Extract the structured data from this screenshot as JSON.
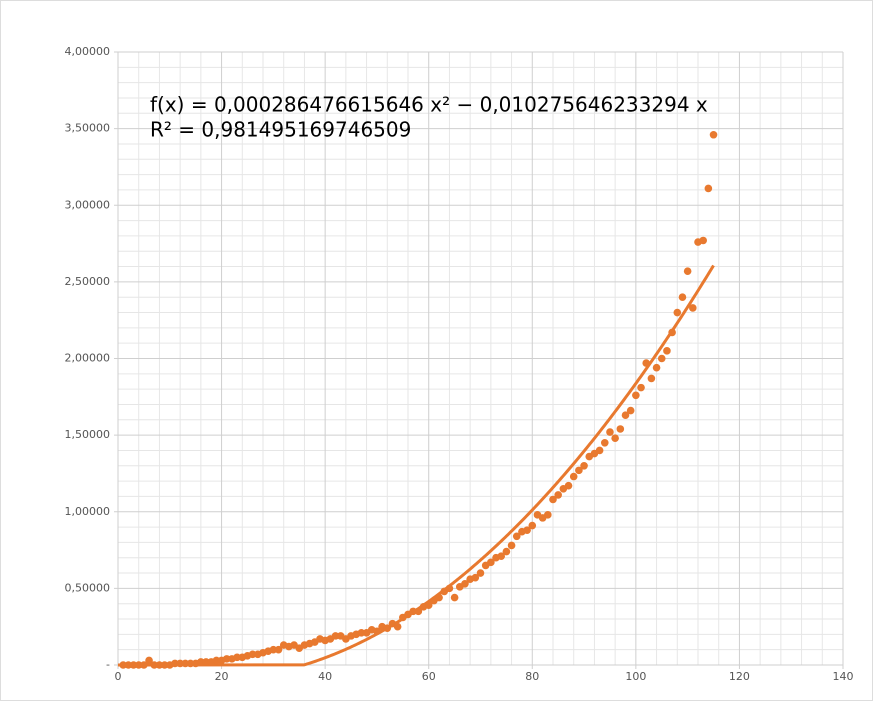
{
  "chart_data": {
    "type": "scatter",
    "annotations": [
      "f(x) = 0,000286476615646 x² − 0,010275646233294 x",
      "R² = 0,981495169746509"
    ],
    "trendline": {
      "type": "polynomial",
      "coefficients": [
        0.000286476615646,
        -0.010275646233294
      ],
      "color": "#e8792f"
    },
    "color": "#e8792f",
    "x": [
      1,
      2,
      3,
      4,
      5,
      6,
      7,
      8,
      9,
      10,
      11,
      12,
      13,
      14,
      15,
      16,
      17,
      18,
      19,
      20,
      21,
      22,
      23,
      24,
      25,
      26,
      27,
      28,
      29,
      30,
      31,
      32,
      33,
      34,
      35,
      36,
      37,
      38,
      39,
      40,
      41,
      42,
      43,
      44,
      45,
      46,
      47,
      48,
      49,
      50,
      51,
      52,
      53,
      54,
      55,
      56,
      57,
      58,
      59,
      60,
      61,
      62,
      63,
      64,
      65,
      66,
      67,
      68,
      69,
      70,
      71,
      72,
      73,
      74,
      75,
      76,
      77,
      78,
      79,
      80,
      81,
      82,
      83,
      84,
      85,
      86,
      87,
      88,
      89,
      90,
      91,
      92,
      93,
      94,
      95,
      96,
      97,
      98,
      99,
      100,
      101,
      102,
      103,
      104,
      105,
      106,
      107,
      108,
      109,
      110,
      111,
      112,
      113,
      114,
      115
    ],
    "values": [
      0.0,
      0.0,
      0.0,
      0.0,
      0.0,
      0.03,
      0.0,
      0.0,
      0.0,
      0.0,
      0.01,
      0.01,
      0.01,
      0.01,
      0.01,
      0.02,
      0.02,
      0.02,
      0.03,
      0.03,
      0.04,
      0.04,
      0.05,
      0.05,
      0.06,
      0.07,
      0.07,
      0.08,
      0.09,
      0.1,
      0.1,
      0.13,
      0.12,
      0.13,
      0.11,
      0.13,
      0.14,
      0.15,
      0.17,
      0.16,
      0.17,
      0.19,
      0.19,
      0.17,
      0.19,
      0.2,
      0.21,
      0.21,
      0.23,
      0.22,
      0.25,
      0.24,
      0.27,
      0.25,
      0.31,
      0.33,
      0.35,
      0.35,
      0.38,
      0.39,
      0.42,
      0.44,
      0.48,
      0.5,
      0.44,
      0.51,
      0.53,
      0.56,
      0.57,
      0.6,
      0.65,
      0.67,
      0.7,
      0.71,
      0.74,
      0.78,
      0.84,
      0.87,
      0.88,
      0.91,
      0.98,
      0.96,
      0.98,
      1.08,
      1.11,
      1.15,
      1.17,
      1.23,
      1.27,
      1.3,
      1.36,
      1.38,
      1.4,
      1.45,
      1.52,
      1.48,
      1.54,
      1.63,
      1.66,
      1.76,
      1.81,
      1.97,
      1.87,
      1.94,
      2.0,
      2.05,
      2.17,
      2.3,
      2.4,
      2.57,
      2.33,
      2.76,
      2.77,
      3.11,
      3.46
    ],
    "xlim": [
      0,
      140
    ],
    "xticks": [
      0,
      20,
      40,
      60,
      80,
      100,
      120,
      140
    ],
    "ylim": [
      0,
      4
    ],
    "yticks": [
      {
        "value": 0,
        "label": "-"
      },
      {
        "value": 0.5,
        "label": "0,50000"
      },
      {
        "value": 1,
        "label": "1,00000"
      },
      {
        "value": 1.5,
        "label": "1,50000"
      },
      {
        "value": 2,
        "label": "2,00000"
      },
      {
        "value": 2.5,
        "label": "2,50000"
      },
      {
        "value": 3,
        "label": "3,00000"
      },
      {
        "value": 3.5,
        "label": "3,50000"
      },
      {
        "value": 4,
        "label": "4,00000"
      }
    ],
    "grid": true
  }
}
